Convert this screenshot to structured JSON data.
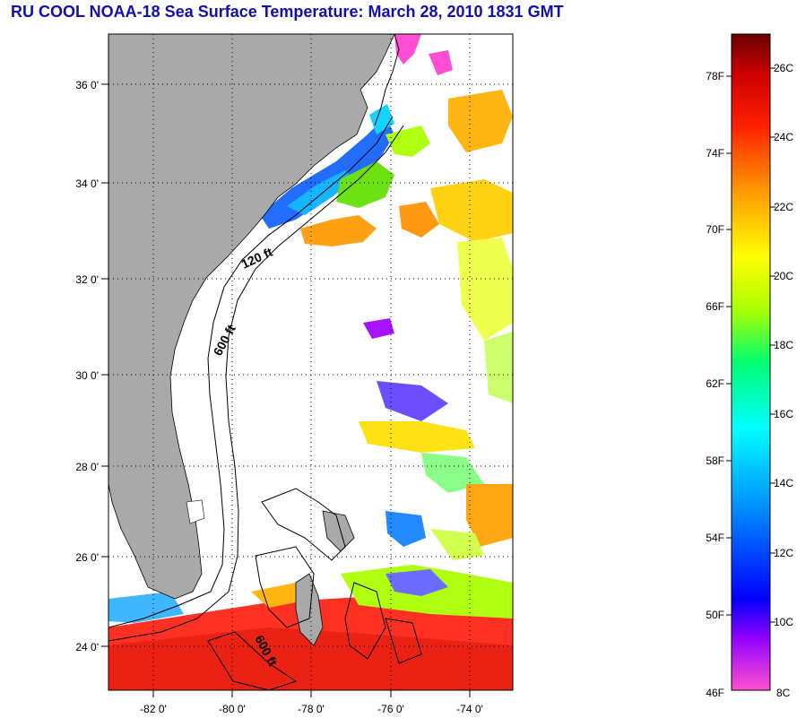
{
  "title": "RU COOL  NOAA-18  Sea Surface Temperature:  March 28, 2010 1831 GMT",
  "map": {
    "lat_labels": [
      "36 0'",
      "34 0'",
      "32 0'",
      "30 0'",
      "28 0'",
      "26 0'",
      "24 0'"
    ],
    "lon_labels": [
      "-82 0'",
      "-80 0'",
      "-78 0'",
      "-76 0'",
      "-74 0'"
    ],
    "isobaths": [
      "120 ft",
      "600 ft",
      "600 ft"
    ],
    "colors": {
      "land": "#a9a9a9",
      "ocean": "#ffffff",
      "grid": "#000000"
    }
  },
  "colorbar": {
    "fahrenheit_labels": [
      "78F",
      "74F",
      "70F",
      "66F",
      "62F",
      "58F",
      "54F",
      "50F",
      "46F"
    ],
    "celsius_labels": [
      "26C",
      "24C",
      "22C",
      "20C",
      "18C",
      "16C",
      "14C",
      "12C",
      "10C",
      "8C"
    ],
    "range_celsius": [
      8,
      27.5
    ],
    "colors": [
      "#ff40d0",
      "#7a00ff",
      "#0000ff",
      "#0090ff",
      "#00ffff",
      "#00ff70",
      "#aaff00",
      "#ffff00",
      "#ff9a00",
      "#ff2000",
      "#cc0000",
      "#700000"
    ]
  }
}
